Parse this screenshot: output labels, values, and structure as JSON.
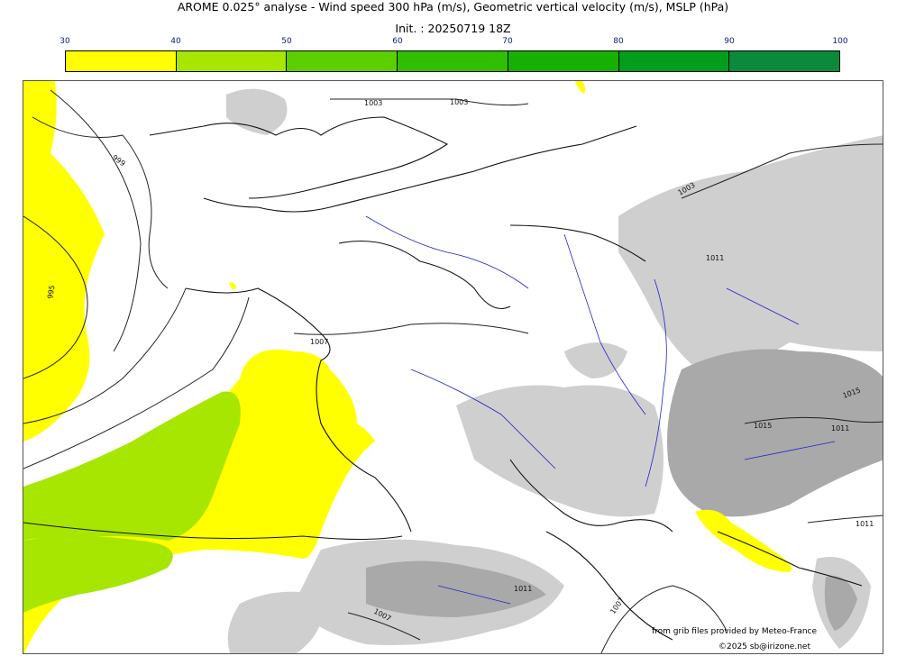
{
  "header": {
    "title": "AROME 0.025° analyse - Wind speed 300 hPa (m/s), Geometric vertical velocity (m/s), MSLP (hPa)",
    "subtitle": "Init. : 20250719 18Z"
  },
  "colorbar": {
    "ticks": [
      "30",
      "40",
      "50",
      "60",
      "70",
      "80",
      "90",
      "100"
    ],
    "colors": [
      "#ffff00",
      "#a6e600",
      "#5ccf00",
      "#2fbf00",
      "#17b000",
      "#009e1a",
      "#0a8a3a",
      "#0b7a4e"
    ]
  },
  "map": {
    "isobar_labels": [
      "1003",
      "1003",
      "999",
      "995",
      "1007",
      "1003",
      "1011",
      "1015",
      "1015",
      "1011",
      "1011",
      "1007",
      "1011",
      "1007"
    ],
    "colors": {
      "coast": "#111111",
      "river": "#2222cc",
      "relief": "#c8c8c8",
      "relief_dark": "#a8a8a8"
    }
  },
  "credits": {
    "line1": "from grib files provided by Meteo-France",
    "line2": "©2025 sb@irizone.net"
  }
}
